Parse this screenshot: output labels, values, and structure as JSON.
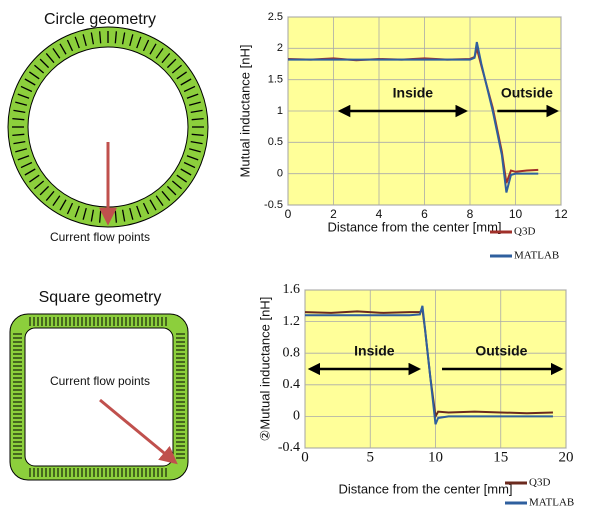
{
  "diagrams": [
    {
      "title": "Circle geometry",
      "label": "Current flow points"
    },
    {
      "title": "Square geometry",
      "label": "Current flow points"
    }
  ],
  "chart_data": [
    {
      "type": "line",
      "xlabel": "Distance from the center [mm]",
      "ylabel": "Mutual inductance [nH]",
      "x": [
        0,
        1,
        2,
        3,
        4,
        5,
        6,
        7,
        8,
        8.2,
        8.3,
        8.5,
        9,
        9.4,
        9.6,
        9.8,
        10,
        10.5,
        11
      ],
      "series": [
        {
          "name": "Q3D",
          "color": "#a0302a",
          "values": [
            1.83,
            1.82,
            1.84,
            1.81,
            1.83,
            1.82,
            1.84,
            1.82,
            1.83,
            1.86,
            2.0,
            1.72,
            1.05,
            0.35,
            -0.15,
            0.05,
            0.03,
            0.05,
            0.06
          ]
        },
        {
          "name": "MATLAB",
          "color": "#2f5f9e",
          "values": [
            1.82,
            1.82,
            1.82,
            1.82,
            1.82,
            1.82,
            1.82,
            1.82,
            1.82,
            1.85,
            2.1,
            1.75,
            1.0,
            0.3,
            -0.3,
            -0.02,
            0,
            0,
            0
          ]
        }
      ],
      "xlim": [
        0,
        12
      ],
      "xticks": [
        0,
        2,
        4,
        6,
        8,
        10,
        12
      ],
      "ylim": [
        -0.5,
        2.5
      ],
      "yticks": [
        -0.5,
        0,
        0.5,
        1,
        1.5,
        2,
        2.5
      ],
      "grid": true,
      "legend": "below-right",
      "annotations": [
        "Inside",
        "Outside"
      ]
    },
    {
      "type": "line",
      "xlabel": "Distance from the center [mm]",
      "ylabel": "②Mutual inductance  [nH]",
      "x": [
        0,
        2,
        4,
        6,
        8,
        8.8,
        9,
        9.2,
        9.6,
        10,
        10.2,
        11,
        13,
        15,
        17,
        19
      ],
      "series": [
        {
          "name": "Q3D",
          "color": "#6b2a1e",
          "values": [
            1.32,
            1.31,
            1.33,
            1.31,
            1.32,
            1.32,
            1.35,
            1.1,
            0.5,
            0.0,
            0.06,
            0.05,
            0.06,
            0.05,
            0.04,
            0.05
          ]
        },
        {
          "name": "MATLAB",
          "color": "#2f5f9e",
          "values": [
            1.28,
            1.28,
            1.28,
            1.28,
            1.28,
            1.29,
            1.4,
            1.1,
            0.5,
            -0.1,
            -0.02,
            0,
            0,
            0,
            0,
            0
          ]
        }
      ],
      "xlim": [
        0,
        20
      ],
      "xticks": [
        0,
        5,
        10,
        15,
        20
      ],
      "ylim": [
        -0.4,
        1.6
      ],
      "yticks": [
        -0.4,
        0,
        0.4,
        0.8,
        1.2,
        1.6
      ],
      "grid": true,
      "legend": "below-right",
      "annotations": [
        "Inside",
        "Outside"
      ]
    }
  ]
}
